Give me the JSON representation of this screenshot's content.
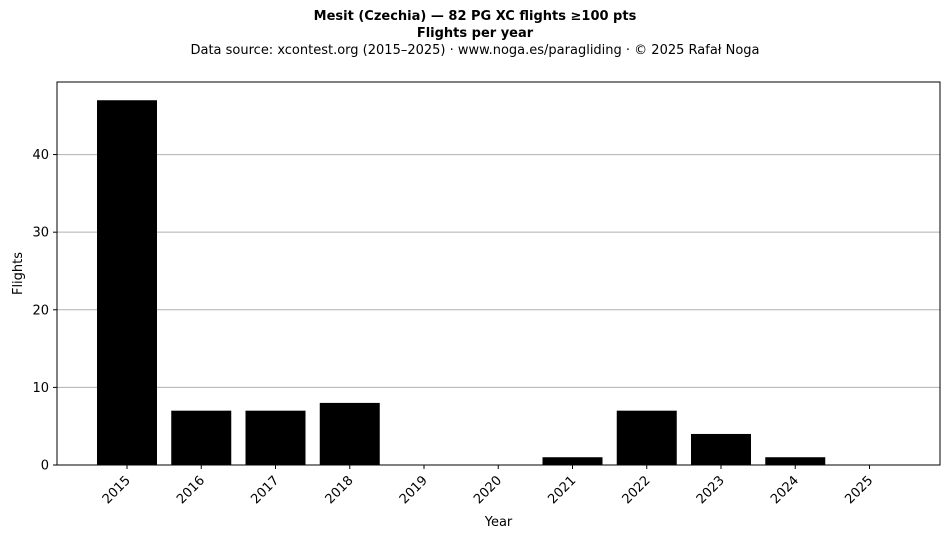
{
  "header": {
    "title": "Mesit (Czechia)  —  82 PG XC flights ≥100 pts",
    "subtitle": "Flights per year",
    "source": "Data source: xcontest.org (2015–2025)  ·  www.noga.es/paragliding  ·  © 2025 Rafał Noga"
  },
  "chart_data": {
    "type": "bar",
    "title": "Mesit (Czechia)  —  82 PG XC flights ≥100 pts",
    "subtitle": "Flights per year",
    "xlabel": "Year",
    "ylabel": "Flights",
    "categories": [
      "2015",
      "2016",
      "2017",
      "2018",
      "2019",
      "2020",
      "2021",
      "2022",
      "2023",
      "2024",
      "2025"
    ],
    "values": [
      47,
      7,
      7,
      8,
      0,
      0,
      1,
      7,
      4,
      1,
      0
    ],
    "ylim": [
      0,
      49.35
    ],
    "yticks": [
      0,
      10,
      20,
      30,
      40
    ],
    "grid": "y",
    "bar_color": "#000000",
    "grid_color": "#b0b0b0"
  }
}
